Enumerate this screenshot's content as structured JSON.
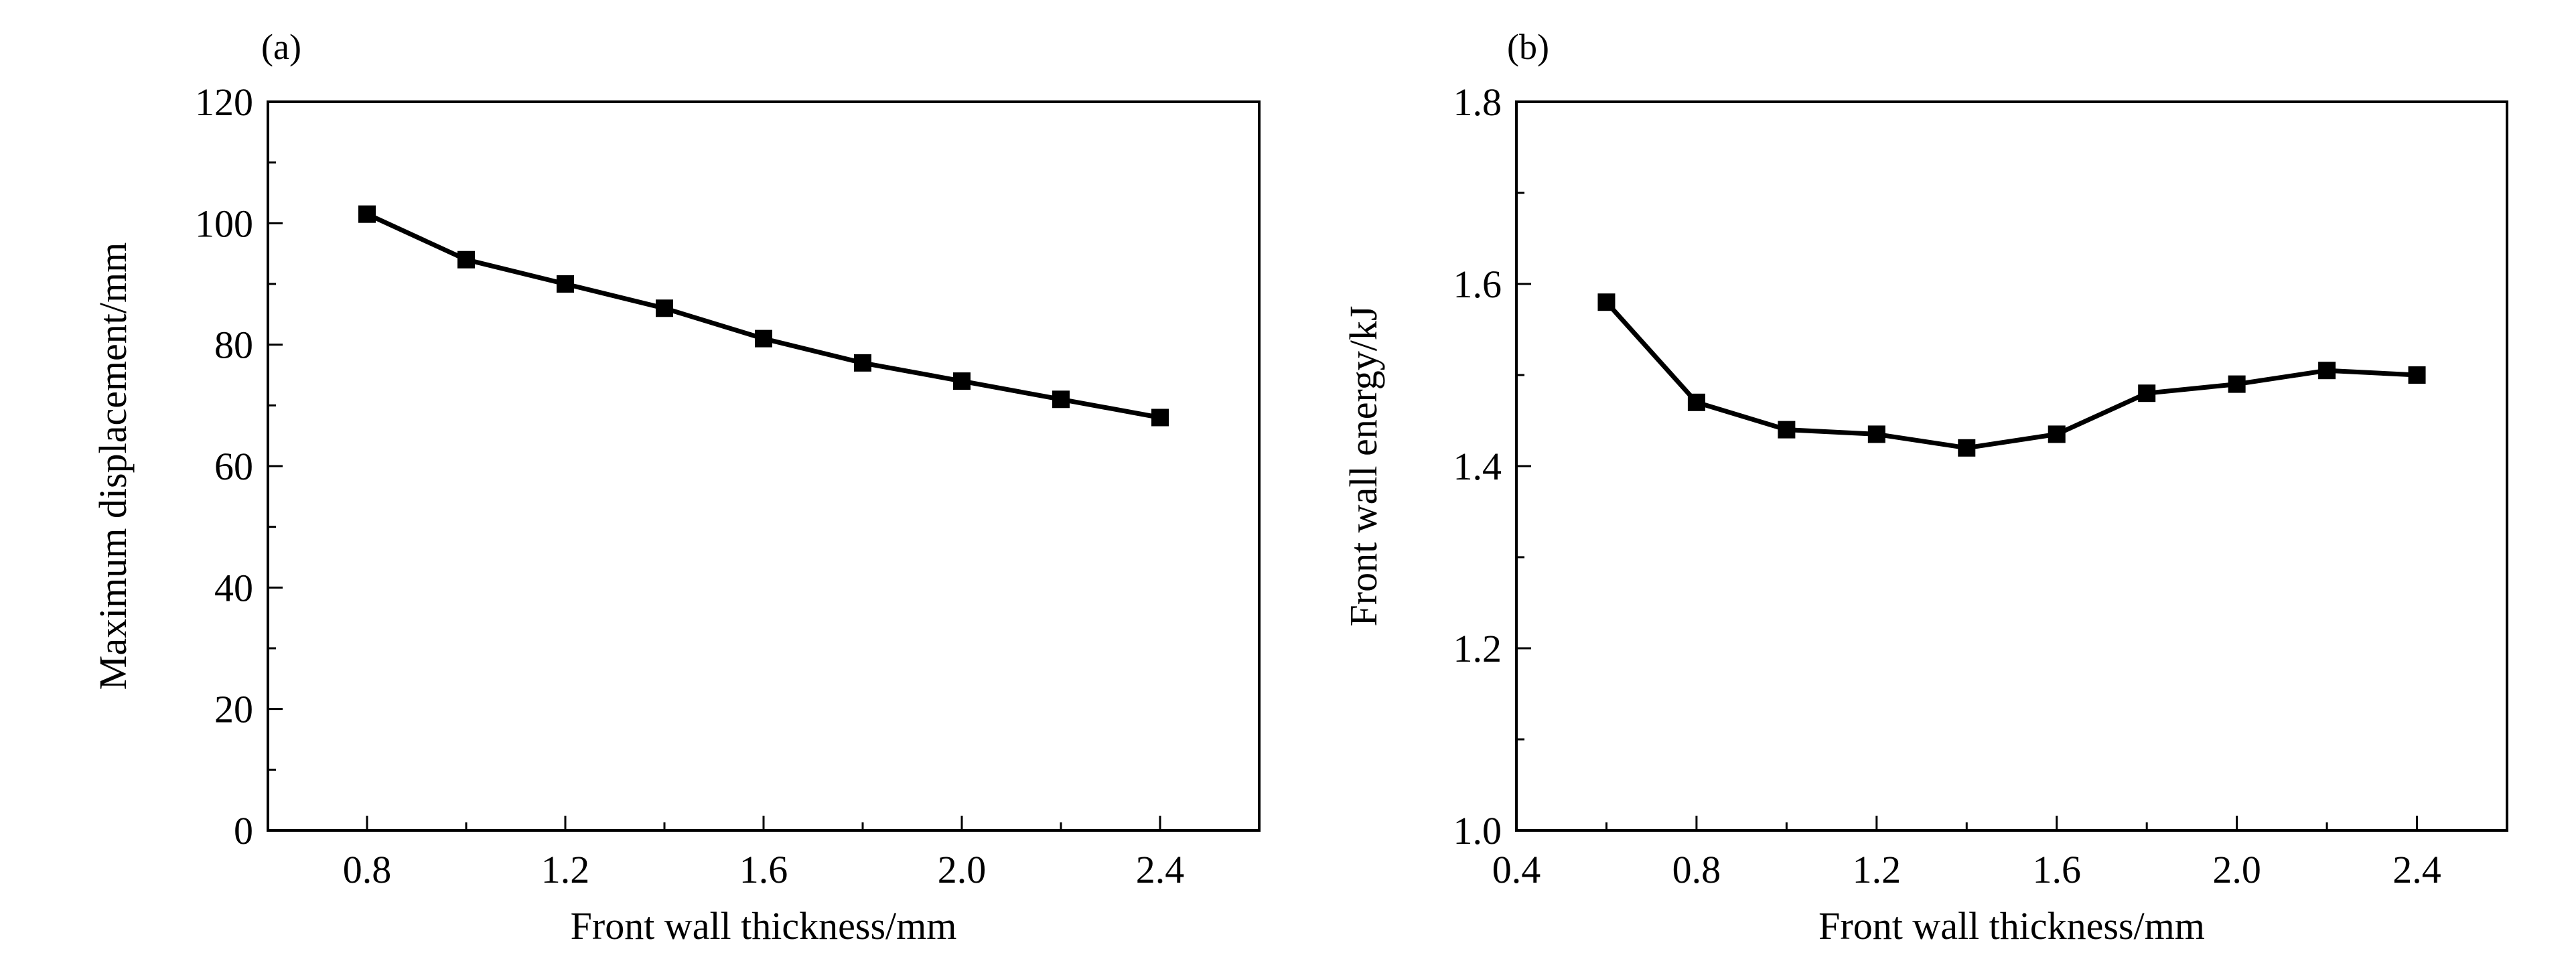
{
  "chart_data": [
    {
      "panel": "(a)",
      "type": "line",
      "marker": "square",
      "xlabel": "Front wall thickness/mm",
      "ylabel": "Maximum displacement/mm",
      "xlim": [
        0.6,
        2.6
      ],
      "ylim": [
        0,
        120
      ],
      "xticks": [
        "0.8",
        "1.2",
        "1.6",
        "2.0",
        "2.4"
      ],
      "yticks": [
        "0",
        "20",
        "40",
        "60",
        "80",
        "100",
        "120"
      ],
      "grid": false,
      "series": [
        {
          "x": [
            0.8,
            1.0,
            1.2,
            1.4,
            1.6,
            1.8,
            2.0,
            2.2,
            2.4
          ],
          "values": [
            101.5,
            94.0,
            90.0,
            86.0,
            81.0,
            77.0,
            74.0,
            71.0,
            68.0
          ]
        }
      ]
    },
    {
      "panel": "(b)",
      "type": "line",
      "marker": "square",
      "xlabel": "Front wall thickness/mm",
      "ylabel": "Front wall energy/kJ",
      "xlim": [
        0.4,
        2.6
      ],
      "ylim": [
        1.0,
        1.8
      ],
      "xticks": [
        "0.4",
        "0.8",
        "1.2",
        "1.6",
        "2.0",
        "2.4"
      ],
      "yticks": [
        "1.0",
        "1.2",
        "1.4",
        "1.6",
        "1.8"
      ],
      "grid": false,
      "series": [
        {
          "x": [
            0.6,
            0.8,
            1.0,
            1.2,
            1.4,
            1.6,
            1.8,
            2.0,
            2.2,
            2.4
          ],
          "values": [
            1.58,
            1.47,
            1.44,
            1.435,
            1.42,
            1.435,
            1.48,
            1.49,
            1.505,
            1.5
          ]
        }
      ]
    }
  ]
}
